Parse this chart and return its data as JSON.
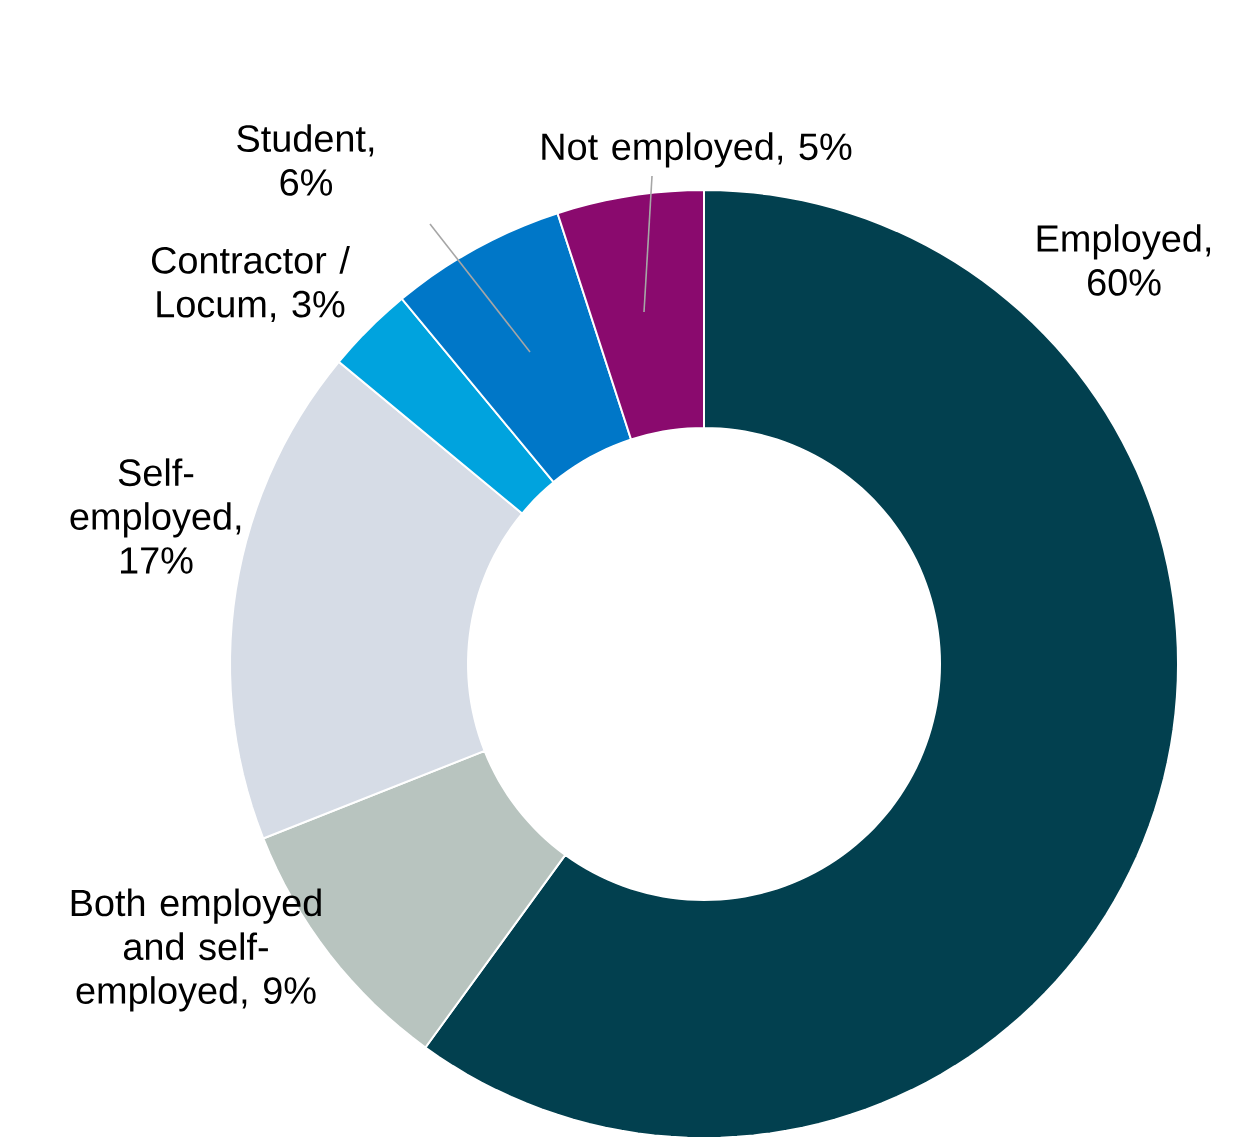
{
  "chart_data": {
    "type": "donut",
    "categories": [
      "Employed, 60%",
      "Both employed and self-employed, 9%",
      "Self-employed, 17%",
      "Contractor / Locum, 3%",
      "Student, 6%",
      "Not employed, 5%"
    ],
    "values": [
      60,
      9,
      17,
      3,
      6,
      5
    ],
    "colors": [
      "#02404f",
      "#b8c4bf",
      "#d6dce6",
      "#00a3de",
      "#0077c8",
      "#8a0a6e"
    ]
  }
}
